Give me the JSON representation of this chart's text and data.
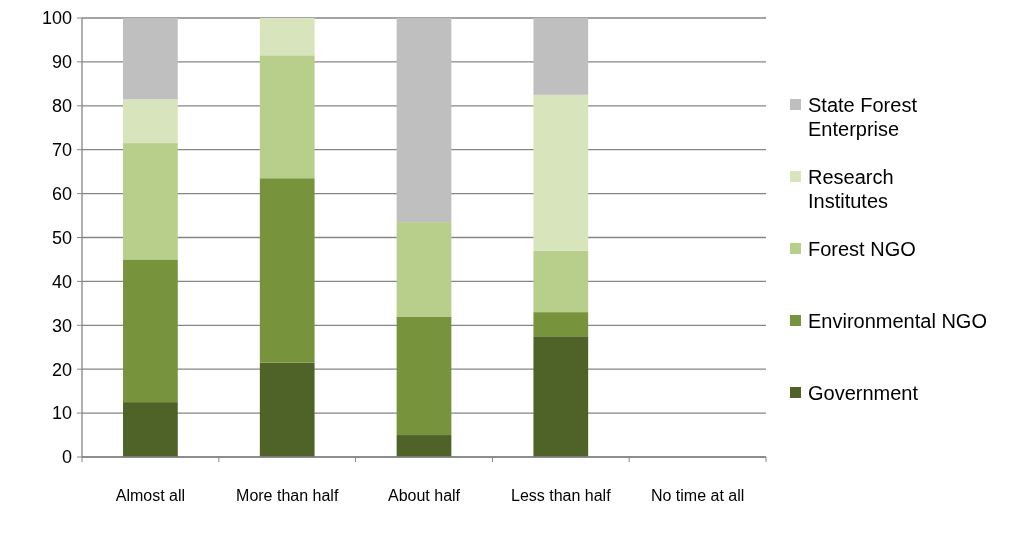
{
  "chart_data": {
    "type": "bar",
    "stacked": true,
    "categories": [
      "Almost all",
      "More than half",
      "About half",
      "Less than half",
      "No time at all"
    ],
    "series": [
      {
        "name": "Government",
        "color": "#4f6228",
        "values": [
          12.5,
          21.5,
          5,
          27.5,
          0
        ]
      },
      {
        "name": "Environmental NGO",
        "color": "#77933c",
        "values": [
          32.5,
          42,
          27,
          5.5,
          0
        ]
      },
      {
        "name": "Forest NGO",
        "color": "#b7cf8b",
        "values": [
          26.5,
          28,
          21.5,
          14,
          0
        ]
      },
      {
        "name": "Research Institutes",
        "color": "#d8e4bc",
        "values": [
          10,
          8.5,
          0,
          35.5,
          0
        ]
      },
      {
        "name": "State Forest Enterprise",
        "color": "#bfbfbf",
        "values": [
          18.5,
          0,
          46.5,
          17.5,
          0
        ]
      }
    ],
    "ylim": [
      0,
      100
    ],
    "yticks": [
      0,
      10,
      20,
      30,
      40,
      50,
      60,
      70,
      80,
      90,
      100
    ],
    "grid": "y",
    "legend": "right"
  }
}
